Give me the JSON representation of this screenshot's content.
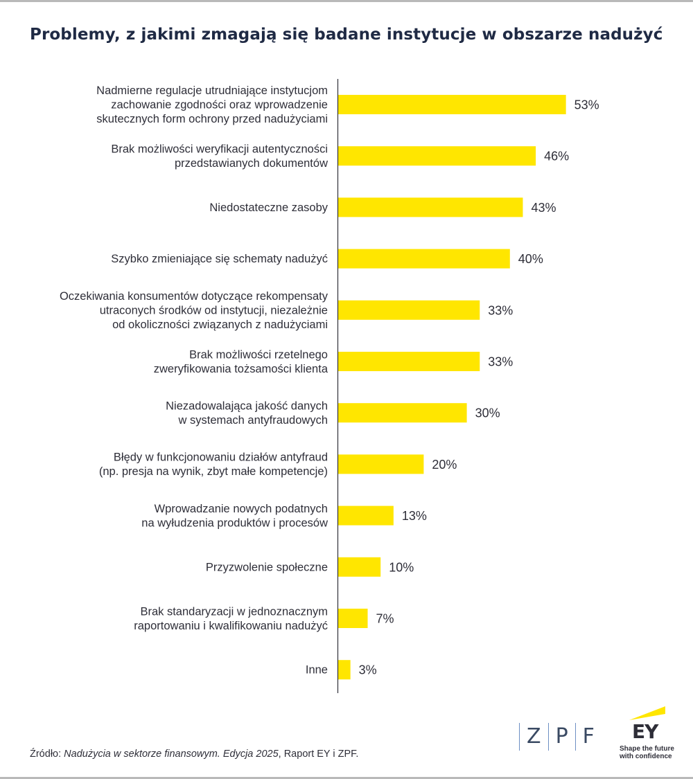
{
  "title": "Problemy, z jakimi zmagają się badane instytucje w obszarze nadużyć",
  "chart_data": {
    "type": "bar",
    "orientation": "horizontal",
    "categories": [
      [
        "Nadmierne regulacje utrudniające instytucjom",
        "zachowanie zgodności oraz wprowadzenie",
        "skutecznych form ochrony przed nadużyciami"
      ],
      [
        "Brak możliwości weryfikacji autentyczności",
        "przedstawianych dokumentów"
      ],
      [
        "Niedostateczne zasoby"
      ],
      [
        "Szybko zmieniające się schematy nadużyć"
      ],
      [
        "Oczekiwania konsumentów dotyczące rekompensaty",
        "utraconych środków od instytucji, niezależnie",
        "od okoliczności związanych z nadużyciami"
      ],
      [
        "Brak możliwości rzetelnego",
        "zweryfikowania tożsamości klienta"
      ],
      [
        "Niezadowalająca jakość danych",
        "w systemach antyfraudowych"
      ],
      [
        "Błędy w funkcjonowaniu działów antyfraud",
        "(np. presja na wynik, zbyt małe kompetencje)"
      ],
      [
        "Wprowadzanie nowych podatnych",
        "na wyłudzenia produktów i procesów"
      ],
      [
        "Przyzwolenie społeczne"
      ],
      [
        "Brak standaryzacji w jednoznacznym",
        "raportowaniu i kwalifikowaniu nadużyć"
      ],
      [
        "Inne"
      ]
    ],
    "values": [
      53,
      46,
      43,
      40,
      33,
      33,
      30,
      20,
      13,
      10,
      7,
      3
    ],
    "value_labels": [
      "53%",
      "46%",
      "43%",
      "40%",
      "33%",
      "33%",
      "30%",
      "20%",
      "13%",
      "10%",
      "7%",
      "3%"
    ],
    "unit": "%",
    "bar_color": "#ffe600",
    "axis_color": "#2e2e38",
    "grid": false,
    "legend": "none"
  },
  "source": {
    "prefix": "Źródło: ",
    "publication": "Nadużycia w sektorze finansowym. Edycja 2025",
    "suffix": ", Raport EY i ZPF."
  },
  "logos": {
    "zpf": [
      "Z",
      "P",
      "F"
    ],
    "ey": {
      "mark": "EY",
      "tagline": [
        "Shape the future",
        "with confidence"
      ],
      "color": "#ffe600"
    }
  }
}
